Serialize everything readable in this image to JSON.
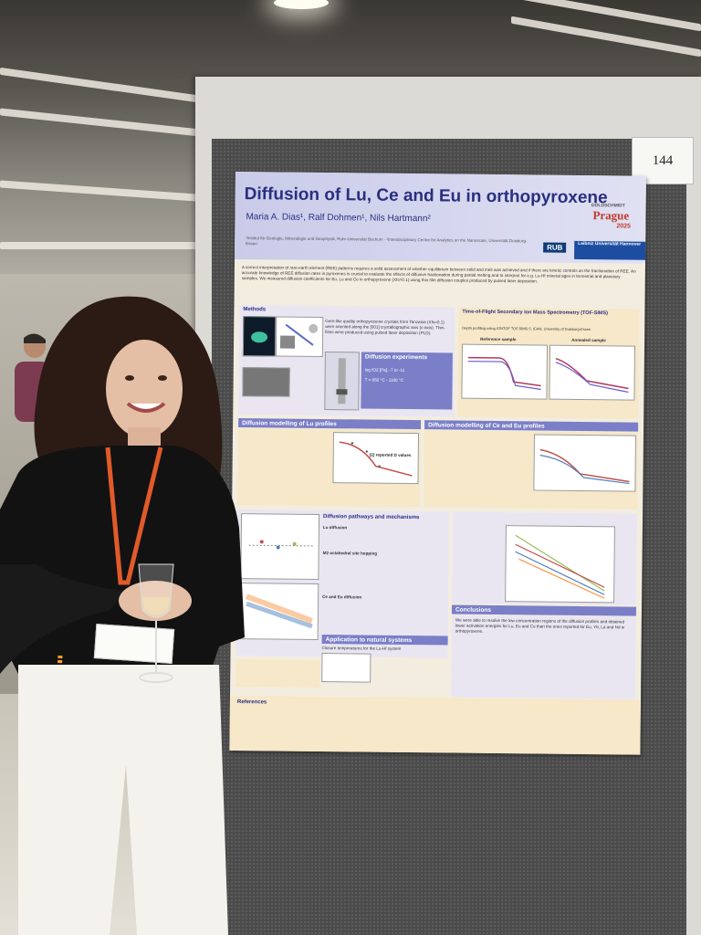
{
  "board": {
    "number": "144"
  },
  "poster": {
    "title": "Diffusion of Lu, Ce and Eu in orthopyroxene",
    "authors": "Maria A. Dias¹, Ralf Dohmen¹, Nils Hartmann²",
    "affiliations": "¹Institut für Geologie, Mineralogie und Geophysik, Ruhr-Universität Bochum · ²Interdisciplinary Centre for Analytics on the Nanoscale, Universität Duisburg-Essen",
    "logos": {
      "goldschmidt": "GOLDSCHMIDT",
      "prague": "Prague",
      "year": "2025",
      "rub": "RUB",
      "luh": "Leibniz Universität Hannover"
    },
    "intro": "A correct interpretation of rare-earth element (REE) patterns requires a solid assessment of whether equilibrium between solid and melt was achieved and if there are kinetic controls on the fractionation of REE. An accurate knowledge of REE diffusion rates in pyroxenes is crucial to evaluate the effects of diffusive fractionation during partial melting and to interpret for e.g. Lu-Hf mineral ages in terrestrial and planetary samples. We measured diffusion coefficients for Eu, Lu and Ce in orthopyroxene (Xfs=0.1) using thin film diffusion couples produced by pulsed laser deposition.",
    "sections": {
      "methods": "Methods",
      "tof_sims": "Time-of-Flight Secondary Ion Mass Spectrometry (TOF-SIMS)",
      "diffusion_experiments": "Diffusion experiments",
      "lu_profiles": "Diffusion modelling of Lu profiles",
      "ce_eu_profiles": "Diffusion modelling of Ce and Eu profiles",
      "pathways": "Diffusion pathways and mechanisms",
      "application": "Application to natural systems",
      "conclusions": "Conclusions",
      "references": "References"
    },
    "labels": {
      "reference_sample": "Reference sample",
      "annealed_sample": "Annealed sample",
      "reported_d_values": "(2) reported D values",
      "lu_diffusion": "Lu diffusion",
      "ce_eu_diffusion": "Ce and Eu diffusion",
      "m2_hopping": "M2 octahedral site hopping"
    },
    "methods_text": "Gem-like quality orthopyroxene crystals from Tanzania (Xfs=0.1) were oriented along the [001] crystallographic axis (c-axis). Thin-films were produced using pulsed laser deposition (PLD).",
    "diffusion_conditions": [
      "log fO2 [Pa]: -7 to -11",
      "T = 950 °C - 1100 °C"
    ],
    "tof_text": "Depth profiling using IONTOF TOF.SIMS 5, ICAN, University of Duisburg-Essen",
    "conclusions_text": "We were able to resolve the low concentration regions of the diffusion profiles and obtained lower activation energies for Lu, Eu and Ce than the ones reported for Eu, Yb, La and Nd in orthopyroxene.",
    "natural_text": "Closure temperatures for the Lu-Hf system"
  }
}
